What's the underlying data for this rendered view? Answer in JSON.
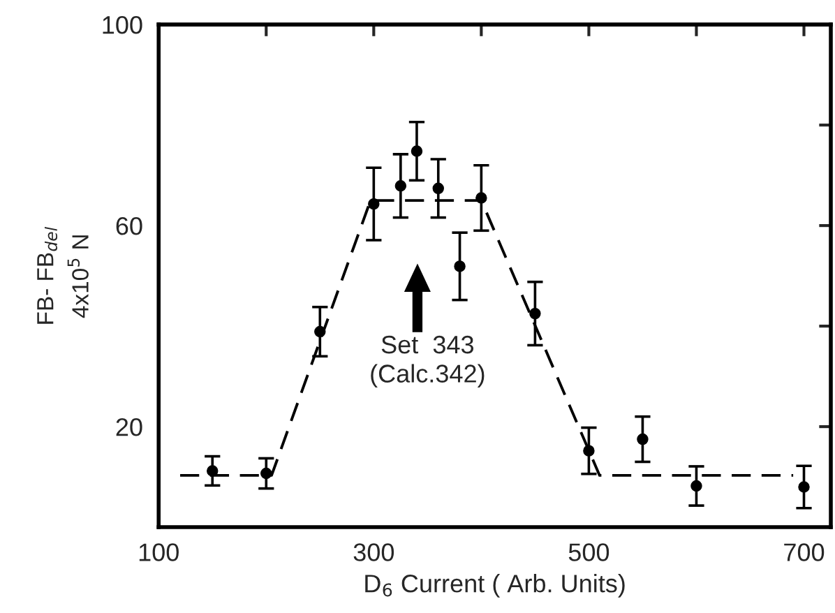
{
  "chart_data": {
    "type": "scatter",
    "xlabel": "D$_{6}$ Current ( Arb. Units)",
    "ylabel": "FB- FB$_{del}$\n4x10$^{5}$ N",
    "xlim": [
      100,
      725
    ],
    "ylim": [
      0,
      100
    ],
    "xticks": [
      100,
      {
        "value": 200,
        "label": null
      },
      300,
      {
        "value": 400,
        "label": null
      },
      500,
      {
        "value": 600,
        "label": null
      },
      700
    ],
    "yticks": [
      20,
      {
        "value": 40,
        "label": null
      },
      60,
      {
        "value": 80,
        "label": null
      },
      100
    ],
    "grid": false,
    "legend": false,
    "annotations": [
      "Set  343\n(Calc.342)"
    ],
    "series": [
      {
        "color": "#000000",
        "marker": "circle",
        "x": [
          150,
          200,
          250,
          300,
          325,
          340,
          360,
          380,
          400,
          450,
          500,
          550,
          600,
          700
        ],
        "values": [
          11.2,
          10.7,
          38.9,
          64.3,
          67.9,
          74.8,
          67.4,
          51.9,
          65.5,
          42.5,
          15.2,
          17.5,
          8.2,
          8.0
        ],
        "errors": [
          2.9,
          3,
          4.9,
          7.2,
          6.3,
          5.8,
          5.8,
          6.7,
          6.5,
          6.3,
          4.6,
          4.5,
          3.9,
          4.2
        ]
      },
      {
        "type": "line",
        "color": "#000000",
        "line_style": "dashed",
        "marker": "none",
        "x": [
          120,
          205,
          297,
          400,
          510,
          690
        ],
        "values": [
          10.3,
          10.3,
          65,
          65,
          10.3,
          10.3
        ]
      }
    ]
  }
}
